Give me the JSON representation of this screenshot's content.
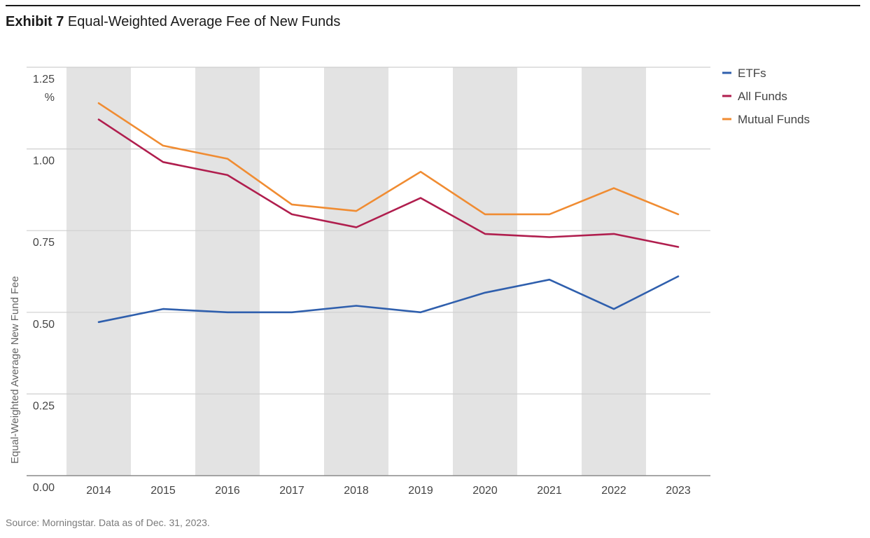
{
  "header": {
    "exhibit_label": "Exhibit 7",
    "title": "Equal-Weighted Average Fee of New Funds"
  },
  "footer": {
    "source": "Source: Morningstar. Data as of Dec. 31, 2023."
  },
  "chart_data": {
    "type": "line",
    "title": "Equal-Weighted Average Fee of New Funds",
    "xlabel": "",
    "ylabel": "Equal-Weighted Average New Fund Fee",
    "y_unit": "%",
    "ylim": [
      0,
      1.25
    ],
    "yticks": [
      "0.00",
      "0.25",
      "0.50",
      "0.75",
      "1.00",
      "1.25"
    ],
    "categories": [
      "2014",
      "2015",
      "2016",
      "2017",
      "2018",
      "2019",
      "2020",
      "2021",
      "2022",
      "2023"
    ],
    "alternating_shaded_columns": true,
    "grid": true,
    "legend_position": "right",
    "series": [
      {
        "name": "ETFs",
        "color": "#2f5fad",
        "values": [
          0.47,
          0.51,
          0.5,
          0.5,
          0.52,
          0.5,
          0.56,
          0.6,
          0.51,
          0.61
        ]
      },
      {
        "name": "All Funds",
        "color": "#b01e4e",
        "values": [
          1.09,
          0.96,
          0.92,
          0.8,
          0.76,
          0.85,
          0.74,
          0.73,
          0.74,
          0.7
        ]
      },
      {
        "name": "Mutual Funds",
        "color": "#f08c32",
        "values": [
          1.14,
          1.01,
          0.97,
          0.83,
          0.81,
          0.93,
          0.8,
          0.8,
          0.88,
          0.8
        ]
      }
    ]
  }
}
